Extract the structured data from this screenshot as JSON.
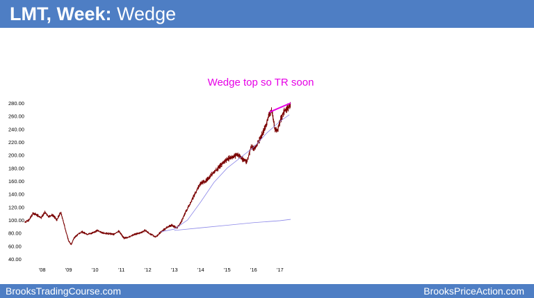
{
  "header": {
    "ticker": "LMT, Week:",
    "subtitle": "Wedge"
  },
  "footer": {
    "left": "BrooksTradingCourse.com",
    "right": "BrooksPriceAction.com"
  },
  "colors": {
    "header_bg": "#4e7ec4",
    "price": "#7a0000",
    "moving_average": "#8a86e8",
    "annotation": "#e600e6",
    "axis_text": "#000000"
  },
  "chart_data": {
    "type": "line",
    "title": "",
    "annotation": "Wedge top so TR soon",
    "xlabel": "",
    "ylabel": "",
    "ylim": [
      40,
      280
    ],
    "yticks": [
      "280.00",
      "260.00",
      "240.00",
      "220.00",
      "200.00",
      "180.00",
      "160.00",
      "140.00",
      "120.00",
      "100.00",
      "80.00",
      "60.00",
      "40.00"
    ],
    "xticks": [
      "'08",
      "'09",
      "'10",
      "'11",
      "'12",
      "'13",
      "'14",
      "'15",
      "'16",
      "'17"
    ],
    "xtick_values": [
      2008,
      2009,
      2010,
      2011,
      2012,
      2013,
      2014,
      2015,
      2016,
      2017
    ],
    "xlim": [
      2007.35,
      2017.4
    ],
    "grid": false,
    "series": [
      {
        "role": "price",
        "x": [
          2007.35,
          2007.5,
          2007.65,
          2007.8,
          2007.95,
          2008.1,
          2008.25,
          2008.4,
          2008.55,
          2008.7,
          2008.8,
          2008.9,
          2009.0,
          2009.1,
          2009.2,
          2009.35,
          2009.5,
          2009.7,
          2009.9,
          2010.1,
          2010.3,
          2010.5,
          2010.7,
          2010.9,
          2011.1,
          2011.3,
          2011.5,
          2011.7,
          2011.9,
          2012.1,
          2012.3,
          2012.5,
          2012.7,
          2012.9,
          2013.0,
          2013.1,
          2013.25,
          2013.4,
          2013.55,
          2013.7,
          2013.85,
          2014.0,
          2014.2,
          2014.4,
          2014.6,
          2014.8,
          2015.0,
          2015.2,
          2015.4,
          2015.6,
          2015.75,
          2015.9,
          2016.05,
          2016.2,
          2016.35,
          2016.5,
          2016.6,
          2016.7,
          2016.8,
          2016.9,
          2017.0,
          2017.1,
          2017.2,
          2017.3,
          2017.4
        ],
        "y": [
          97,
          100,
          110,
          108,
          103,
          112,
          105,
          108,
          100,
          112,
          98,
          82,
          68,
          62,
          72,
          78,
          82,
          78,
          80,
          84,
          80,
          79,
          78,
          83,
          72,
          74,
          78,
          80,
          84,
          78,
          74,
          82,
          88,
          92,
          90,
          88,
          96,
          110,
          122,
          134,
          146,
          157,
          160,
          170,
          177,
          186,
          194,
          197,
          201,
          193,
          190,
          212,
          210,
          222,
          234,
          250,
          264,
          268,
          240,
          237,
          252,
          262,
          270,
          273,
          276
        ]
      },
      {
        "role": "moving_average",
        "x": [
          2013.0,
          2014.0,
          2015.0,
          2016.0,
          2017.0,
          2017.4
        ],
        "y": [
          84,
          88,
          92,
          96,
          99,
          101
        ]
      },
      {
        "role": "moving_average_trend",
        "x": [
          2012.5,
          2013.0,
          2013.5,
          2014.0,
          2014.5,
          2015.0,
          2015.5,
          2016.0,
          2016.5,
          2017.0,
          2017.35
        ],
        "y": [
          82,
          86,
          100,
          128,
          158,
          180,
          196,
          212,
          234,
          252,
          262
        ]
      },
      {
        "role": "wedge_line",
        "x": [
          2016.6,
          2017.4
        ],
        "y": [
          266,
          280
        ]
      }
    ]
  }
}
